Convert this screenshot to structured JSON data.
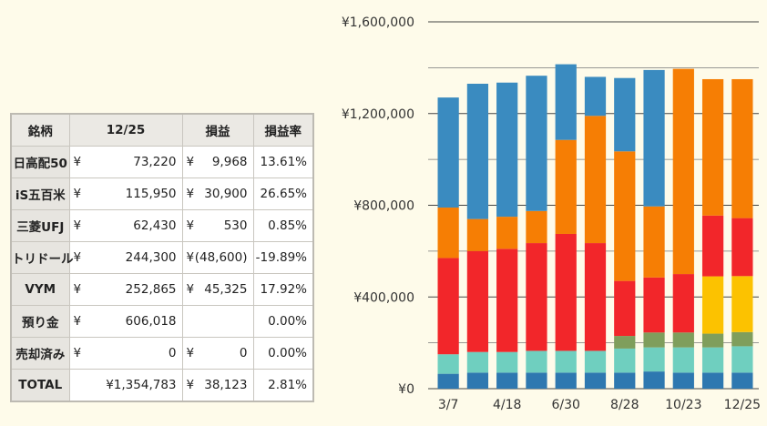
{
  "table": {
    "headers": [
      "銘柄",
      "12/25",
      "損益",
      "損益率"
    ],
    "rows": [
      {
        "name": "日高配50",
        "yen1": "¥",
        "value": "73,220",
        "yen2": "¥",
        "pl": "9,968",
        "rate": "13.61%"
      },
      {
        "name": "iS五百米",
        "yen1": "¥",
        "value": "115,950",
        "yen2": "¥",
        "pl": "30,900",
        "rate": "26.65%"
      },
      {
        "name": "三菱UFJ",
        "yen1": "¥",
        "value": "62,430",
        "yen2": "¥",
        "pl": "530",
        "rate": "0.85%"
      },
      {
        "name": "トリドール",
        "yen1": "¥",
        "value": "244,300",
        "yen2": "¥",
        "pl": "(48,600)",
        "rate": "-19.89%"
      },
      {
        "name": "VYM",
        "yen1": "¥",
        "value": "252,865",
        "yen2": "¥",
        "pl": "45,325",
        "rate": "17.92%"
      },
      {
        "name": "預り金",
        "yen1": "¥",
        "value": "606,018",
        "yen2": "",
        "pl": "",
        "rate": "0.00%"
      },
      {
        "name": "売却済み",
        "yen1": "¥",
        "value": "0",
        "yen2": "¥",
        "pl": "0",
        "rate": "0.00%"
      },
      {
        "name": "TOTAL",
        "yen1": "",
        "value": "¥1,354,783",
        "yen2": "¥",
        "pl": "38,123",
        "rate": "2.81%"
      }
    ]
  },
  "chart_data": {
    "type": "bar",
    "stacked": true,
    "categories": [
      "3/7",
      "",
      "4/18",
      "",
      "6/30",
      "",
      "8/28",
      "",
      "10/23",
      "",
      "12/25"
    ],
    "tick_labels_x": [
      "3/7",
      "4/18",
      "6/30",
      "8/28",
      "10/23",
      "12/25"
    ],
    "ylim": [
      0,
      1600000
    ],
    "yticks": [
      "¥0",
      "¥400,000",
      "¥800,000",
      "¥1,200,000",
      "¥1,600,000"
    ],
    "ytick_values": [
      0,
      400000,
      800000,
      1200000,
      1600000
    ],
    "grid": true,
    "legend": "none",
    "series": [
      {
        "color": "#2e78b0",
        "values": [
          65000,
          70000,
          70000,
          70000,
          70000,
          70000,
          70000,
          75000,
          70000,
          70000,
          70000
        ]
      },
      {
        "color": "#6fcfbf",
        "values": [
          85000,
          90000,
          90000,
          95000,
          95000,
          95000,
          105000,
          105000,
          110000,
          110000,
          115000
        ]
      },
      {
        "color": "#7f9e5c",
        "values": [
          0,
          0,
          0,
          0,
          0,
          0,
          55000,
          65000,
          65000,
          60000,
          62000
        ]
      },
      {
        "color": "#fcc200",
        "values": [
          0,
          0,
          0,
          0,
          0,
          0,
          0,
          0,
          0,
          250000,
          244000
        ]
      },
      {
        "color": "#f2262a",
        "values": [
          420000,
          440000,
          450000,
          470000,
          510000,
          470000,
          240000,
          240000,
          255000,
          265000,
          253000
        ]
      },
      {
        "color": "#f67e04",
        "values": [
          220000,
          140000,
          140000,
          140000,
          410000,
          555000,
          565000,
          310000,
          895000,
          595000,
          606000
        ]
      },
      {
        "color": "#3a8bc0",
        "values": [
          480000,
          590000,
          585000,
          590000,
          330000,
          170000,
          320000,
          595000,
          0,
          0,
          0
        ]
      }
    ]
  }
}
